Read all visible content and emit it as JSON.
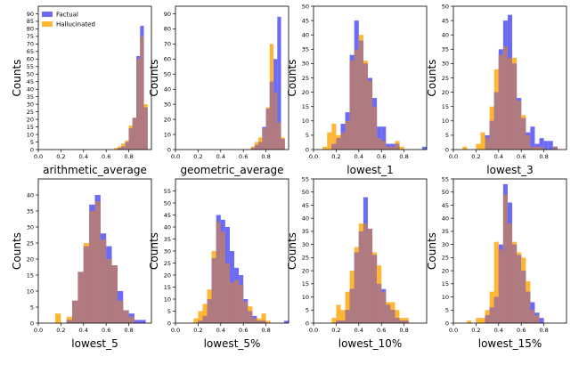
{
  "colors": {
    "factual": "#6b6bf5",
    "hallucinated": "#ffb733",
    "overlap": "#b07a7e"
  },
  "chart_data": [
    {
      "type": "histogram",
      "xlabel": "arithmetic_average",
      "ylabel": "Counts",
      "xlim": [
        0,
        1
      ],
      "ylim": [
        0,
        95
      ],
      "xticks": [
        "0.0",
        "0.2",
        "0.4",
        "0.6",
        "0.8"
      ],
      "yticks": [
        0,
        5,
        10,
        15,
        20,
        25,
        30,
        35,
        40,
        45,
        50,
        55,
        60,
        65,
        70,
        75,
        80,
        85,
        90
      ],
      "legend": {
        "placement": "top-left",
        "entries": [
          "Factual",
          "Hallucinated"
        ]
      },
      "bin_width": 0.0333,
      "series": [
        {
          "name": "Factual",
          "bins": [
            0.667,
            0.7,
            0.733,
            0.767,
            0.8,
            0.833,
            0.867,
            0.9,
            0.933
          ],
          "values": [
            0,
            1,
            2,
            5,
            14,
            21,
            62,
            82,
            28
          ]
        },
        {
          "name": "Hallucinated",
          "bins": [
            0.667,
            0.7,
            0.733,
            0.767,
            0.8,
            0.833,
            0.867,
            0.9,
            0.933
          ],
          "values": [
            1,
            2,
            4,
            6,
            16,
            21,
            60,
            75,
            30
          ]
        }
      ]
    },
    {
      "type": "histogram",
      "xlabel": "geometric_average",
      "ylabel": "Counts",
      "xlim": [
        0,
        1
      ],
      "ylim": [
        0,
        95
      ],
      "xticks": [
        "0.0",
        "0.2",
        "0.4",
        "0.6",
        "0.8"
      ],
      "yticks": [
        0,
        10,
        20,
        30,
        40,
        50,
        60,
        70,
        80,
        90
      ],
      "bin_width": 0.0333,
      "series": [
        {
          "name": "Factual",
          "bins": [
            0.667,
            0.7,
            0.733,
            0.767,
            0.8,
            0.833,
            0.867,
            0.9,
            0.933
          ],
          "values": [
            1,
            3,
            5,
            15,
            27,
            45,
            60,
            88,
            7
          ]
        },
        {
          "name": "Hallucinated",
          "bins": [
            0.667,
            0.7,
            0.733,
            0.767,
            0.8,
            0.833,
            0.867,
            0.9,
            0.933
          ],
          "values": [
            2,
            5,
            8,
            14,
            28,
            70,
            38,
            18,
            8
          ]
        }
      ]
    },
    {
      "type": "histogram",
      "xlabel": "lowest_1",
      "ylabel": "Counts",
      "xlim": [
        0,
        1
      ],
      "ylim": [
        0,
        50
      ],
      "xticks": [
        "0.0",
        "0.2",
        "0.4",
        "0.6",
        "0.8"
      ],
      "yticks": [
        0,
        5,
        10,
        15,
        20,
        25,
        30,
        35,
        40,
        45,
        50
      ],
      "bin_width": 0.04,
      "series": [
        {
          "name": "Factual",
          "bins": [
            0.08,
            0.12,
            0.16,
            0.2,
            0.24,
            0.28,
            0.32,
            0.36,
            0.4,
            0.44,
            0.48,
            0.52,
            0.56,
            0.6,
            0.64,
            0.68,
            0.72,
            0.76,
            0.8,
            0.84,
            0.88,
            0.92,
            0.96
          ],
          "values": [
            0,
            0,
            2,
            4,
            9,
            13,
            33,
            45,
            38,
            30,
            25,
            18,
            8,
            8,
            2,
            2,
            2,
            0,
            0,
            0,
            0,
            0,
            1
          ]
        },
        {
          "name": "Hallucinated",
          "bins": [
            0.08,
            0.12,
            0.16,
            0.2,
            0.24,
            0.28,
            0.32,
            0.36,
            0.4,
            0.44,
            0.48,
            0.52,
            0.56,
            0.6,
            0.64,
            0.68,
            0.72,
            0.76,
            0.8,
            0.84,
            0.88,
            0.92,
            0.96
          ],
          "values": [
            1,
            6,
            9,
            5,
            6,
            10,
            31,
            35,
            40,
            31,
            24,
            15,
            4,
            3,
            1,
            1,
            3,
            1,
            0,
            0,
            0,
            0,
            0
          ]
        }
      ]
    },
    {
      "type": "histogram",
      "xlabel": "lowest_3",
      "ylabel": "Counts",
      "xlim": [
        0,
        1
      ],
      "ylim": [
        0,
        50
      ],
      "xticks": [
        "0.0",
        "0.2",
        "0.4",
        "0.6",
        "0.8"
      ],
      "yticks": [
        0,
        5,
        10,
        15,
        20,
        25,
        30,
        35,
        40,
        45,
        50
      ],
      "bin_width": 0.04,
      "series": [
        {
          "name": "Factual",
          "bins": [
            0.08,
            0.12,
            0.16,
            0.2,
            0.24,
            0.28,
            0.32,
            0.36,
            0.4,
            0.44,
            0.48,
            0.52,
            0.56,
            0.6,
            0.64,
            0.68,
            0.72,
            0.76,
            0.8,
            0.84,
            0.88
          ],
          "values": [
            0,
            0,
            0,
            0,
            0,
            5,
            10,
            20,
            35,
            45,
            47,
            30,
            18,
            11,
            6,
            8,
            2,
            4,
            3,
            3,
            1
          ]
        },
        {
          "name": "Hallucinated",
          "bins": [
            0.08,
            0.12,
            0.16,
            0.2,
            0.24,
            0.28,
            0.32,
            0.36,
            0.4,
            0.44,
            0.48,
            0.52,
            0.56,
            0.6,
            0.64,
            0.68,
            0.72,
            0.76,
            0.8,
            0.84,
            0.88
          ],
          "values": [
            1,
            0,
            0,
            2,
            6,
            4,
            15,
            28,
            33,
            36,
            32,
            32,
            17,
            12,
            5,
            1,
            1,
            1,
            0,
            0,
            1
          ]
        }
      ]
    },
    {
      "type": "histogram",
      "xlabel": "lowest_5",
      "ylabel": "Counts",
      "xlim": [
        0,
        1
      ],
      "ylim": [
        0,
        45
      ],
      "xticks": [
        "0.0",
        "0.2",
        "0.4",
        "0.6",
        "0.8"
      ],
      "yticks": [
        0,
        5,
        10,
        15,
        20,
        25,
        30,
        35,
        40
      ],
      "bin_width": 0.05,
      "series": [
        {
          "name": "Factual",
          "bins": [
            0.1,
            0.15,
            0.2,
            0.25,
            0.3,
            0.35,
            0.4,
            0.45,
            0.5,
            0.55,
            0.6,
            0.65,
            0.7,
            0.75,
            0.8,
            0.85,
            0.9,
            0.95
          ],
          "values": [
            0,
            0,
            0,
            1,
            7,
            16,
            24,
            37,
            40,
            28,
            24,
            18,
            10,
            4,
            3,
            1,
            1,
            0
          ]
        },
        {
          "name": "Hallucinated",
          "bins": [
            0.1,
            0.15,
            0.2,
            0.25,
            0.3,
            0.35,
            0.4,
            0.45,
            0.5,
            0.55,
            0.6,
            0.65,
            0.7,
            0.75,
            0.8,
            0.85,
            0.9,
            0.95
          ],
          "values": [
            0,
            3,
            0,
            2,
            7,
            16,
            25,
            35,
            38,
            26,
            20,
            18,
            7,
            4,
            2,
            0,
            0,
            0
          ]
        }
      ]
    },
    {
      "type": "histogram",
      "xlabel": "lowest_5%",
      "ylabel": "Counts",
      "xlim": [
        0,
        1
      ],
      "ylim": [
        0,
        60
      ],
      "xticks": [
        "0.0",
        "0.2",
        "0.4",
        "0.6",
        "0.8"
      ],
      "yticks": [
        0,
        5,
        10,
        15,
        20,
        25,
        30,
        35,
        40,
        45,
        50,
        55
      ],
      "bin_width": 0.04,
      "series": [
        {
          "name": "Factual",
          "bins": [
            0.08,
            0.12,
            0.16,
            0.2,
            0.24,
            0.28,
            0.32,
            0.36,
            0.4,
            0.44,
            0.48,
            0.52,
            0.56,
            0.6,
            0.64,
            0.68,
            0.72,
            0.76,
            0.8,
            0.84,
            0.88,
            0.92,
            0.96
          ],
          "values": [
            0,
            0,
            0,
            1,
            3,
            10,
            27,
            45,
            43,
            40,
            30,
            23,
            20,
            10,
            5,
            3,
            1,
            1,
            0,
            0,
            0,
            0,
            1
          ]
        },
        {
          "name": "Hallucinated",
          "bins": [
            0.08,
            0.12,
            0.16,
            0.2,
            0.24,
            0.28,
            0.32,
            0.36,
            0.4,
            0.44,
            0.48,
            0.52,
            0.56,
            0.6,
            0.64,
            0.68,
            0.72,
            0.76,
            0.8,
            0.84,
            0.88,
            0.92,
            0.96
          ],
          "values": [
            0,
            0,
            2,
            5,
            8,
            14,
            30,
            42,
            38,
            25,
            17,
            18,
            16,
            9,
            7,
            2,
            2,
            4,
            1,
            0,
            0,
            0,
            0
          ]
        }
      ]
    },
    {
      "type": "histogram",
      "xlabel": "lowest_10%",
      "ylabel": "Counts",
      "xlim": [
        0,
        1
      ],
      "ylim": [
        0,
        55
      ],
      "xticks": [
        "0.0",
        "0.2",
        "0.4",
        "0.6",
        "0.8"
      ],
      "yticks": [
        0,
        5,
        10,
        15,
        20,
        25,
        30,
        35,
        40,
        45,
        50,
        55
      ],
      "bin_width": 0.04,
      "series": [
        {
          "name": "Factual",
          "bins": [
            0.08,
            0.12,
            0.16,
            0.2,
            0.24,
            0.28,
            0.32,
            0.36,
            0.4,
            0.44,
            0.48,
            0.52,
            0.56,
            0.6,
            0.64,
            0.68,
            0.72,
            0.76,
            0.8,
            0.84,
            0.88,
            0.92,
            0.96
          ],
          "values": [
            0,
            0,
            0,
            1,
            1,
            5,
            13,
            27,
            35,
            48,
            36,
            26,
            15,
            13,
            7,
            5,
            2,
            1,
            1,
            0,
            0,
            0,
            0
          ]
        },
        {
          "name": "Hallucinated",
          "bins": [
            0.08,
            0.12,
            0.16,
            0.2,
            0.24,
            0.28,
            0.32,
            0.36,
            0.4,
            0.44,
            0.48,
            0.52,
            0.56,
            0.6,
            0.64,
            0.68,
            0.72,
            0.76,
            0.8,
            0.84,
            0.88,
            0.92,
            0.96
          ],
          "values": [
            0,
            0,
            2,
            7,
            5,
            12,
            20,
            29,
            38,
            38,
            36,
            27,
            22,
            12,
            8,
            8,
            5,
            2,
            2,
            0,
            0,
            0,
            0
          ]
        }
      ]
    },
    {
      "type": "histogram",
      "xlabel": "lowest_15%",
      "ylabel": "Counts",
      "xlim": [
        0,
        1
      ],
      "ylim": [
        0,
        55
      ],
      "xticks": [
        "0.0",
        "0.2",
        "0.4",
        "0.6",
        "0.8"
      ],
      "yticks": [
        0,
        5,
        10,
        15,
        20,
        25,
        30,
        35,
        40,
        45,
        50,
        55
      ],
      "bin_width": 0.04,
      "series": [
        {
          "name": "Factual",
          "bins": [
            0.08,
            0.12,
            0.16,
            0.2,
            0.24,
            0.28,
            0.32,
            0.36,
            0.4,
            0.44,
            0.48,
            0.52,
            0.56,
            0.6,
            0.64,
            0.68,
            0.72,
            0.76,
            0.8,
            0.84,
            0.88,
            0.92,
            0.96
          ],
          "values": [
            0,
            0,
            0,
            0,
            0,
            3,
            6,
            10,
            30,
            53,
            46,
            30,
            26,
            20,
            12,
            8,
            4,
            2,
            0,
            0,
            0,
            0,
            0
          ]
        },
        {
          "name": "Hallucinated",
          "bins": [
            0.08,
            0.12,
            0.16,
            0.2,
            0.24,
            0.28,
            0.32,
            0.36,
            0.4,
            0.44,
            0.48,
            0.52,
            0.56,
            0.6,
            0.64,
            0.68,
            0.72,
            0.76,
            0.8,
            0.84,
            0.88,
            0.92,
            0.96
          ],
          "values": [
            0,
            1,
            0,
            2,
            2,
            5,
            12,
            31,
            28,
            49,
            38,
            31,
            27,
            25,
            16,
            5,
            3,
            0,
            0,
            0,
            0,
            0,
            0
          ]
        }
      ]
    }
  ]
}
